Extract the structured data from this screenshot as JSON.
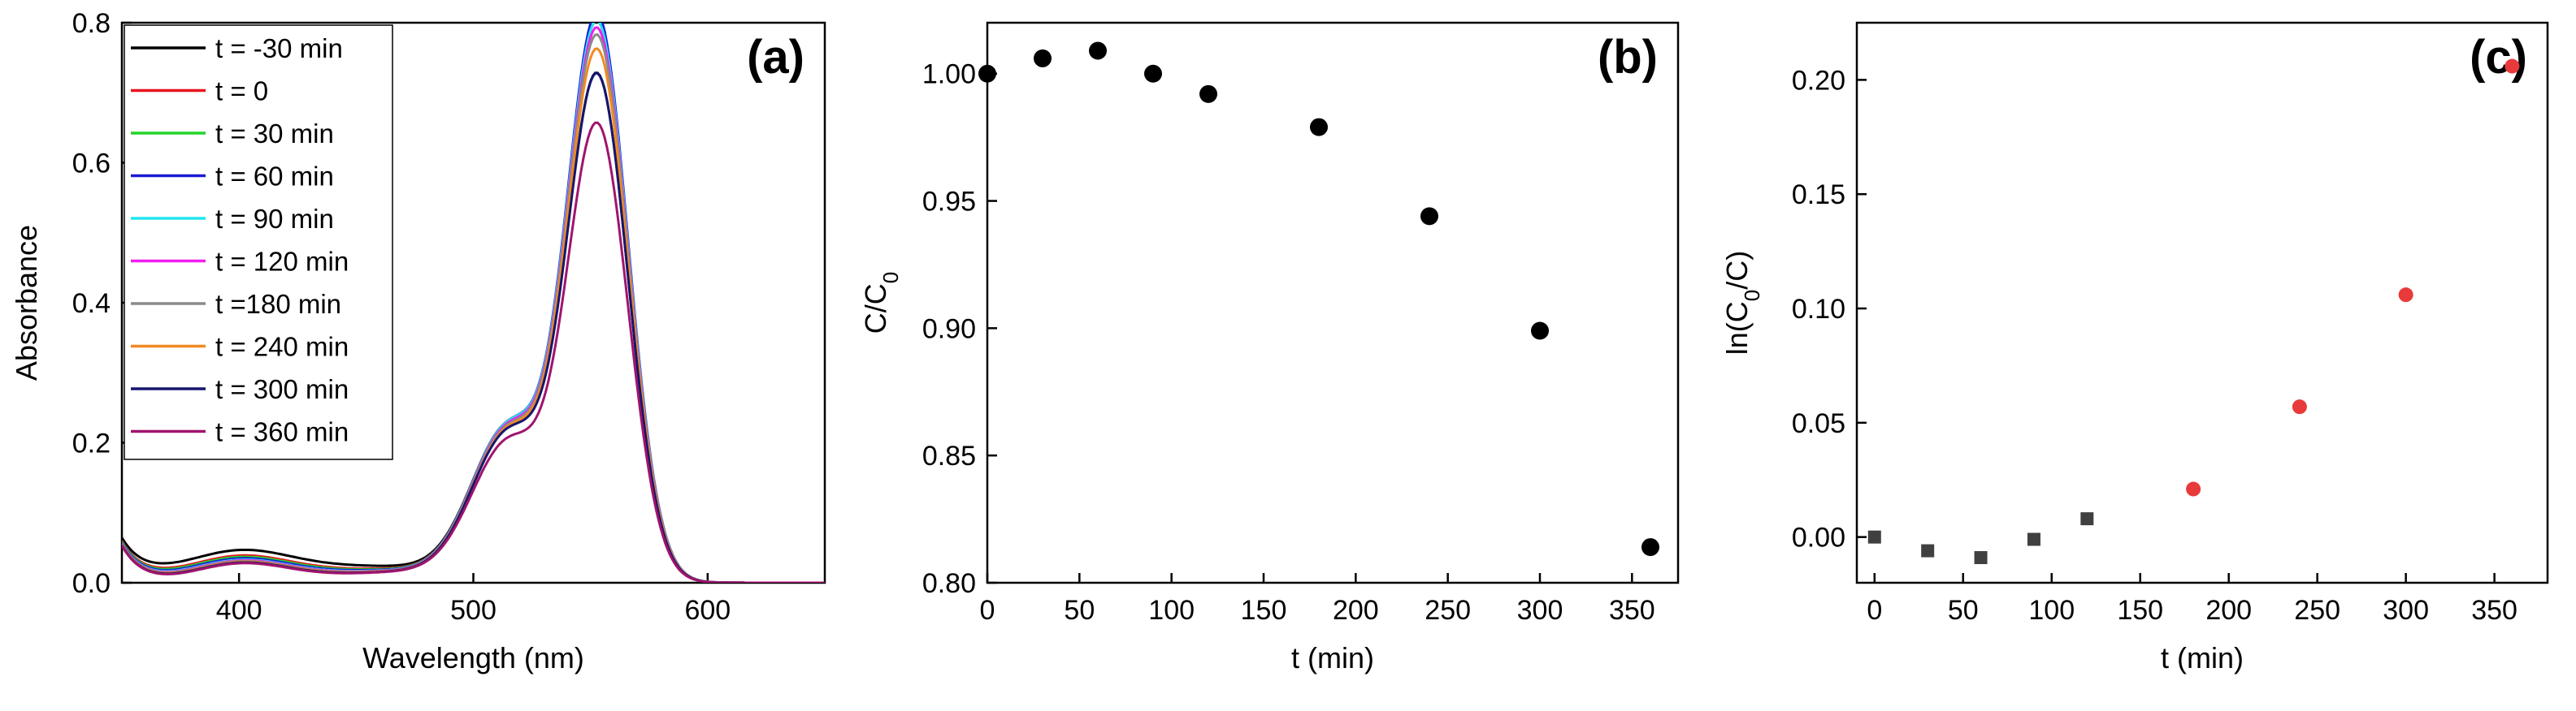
{
  "chart_data": [
    {
      "type": "line",
      "panel_label": "(a)",
      "xlabel": "Wavelength (nm)",
      "ylabel": "Absorbance",
      "xlim": [
        350,
        650
      ],
      "ylim": [
        0,
        0.8
      ],
      "xticks": [
        "400",
        "500",
        "600"
      ],
      "xtick_values": [
        400,
        500,
        600
      ],
      "yticks": [
        "0.0",
        "0.2",
        "0.4",
        "0.6",
        "0.8"
      ],
      "ytick_values": [
        0,
        0.2,
        0.4,
        0.6,
        0.8
      ],
      "legend_position": "top-left",
      "x": [
        350,
        355,
        360,
        370,
        380,
        390,
        400,
        410,
        420,
        430,
        440,
        450,
        460,
        470,
        480,
        490,
        500,
        505,
        510,
        515,
        520,
        525,
        530,
        535,
        540,
        545,
        550,
        553,
        556,
        560,
        565,
        570,
        575,
        580,
        585,
        590,
        600,
        610,
        620,
        630,
        650
      ],
      "series": [
        {
          "name": "t = -30 min",
          "color": "#000000",
          "peak": 0.715,
          "base_shift": 0.012,
          "shoulder": 1.0
        },
        {
          "name": "t = 0",
          "color": "#e8141c",
          "peak": 0.79,
          "base_shift": 0.004,
          "shoulder": 1.0
        },
        {
          "name": "t = 30 min",
          "color": "#22d42a",
          "peak": 0.795,
          "base_shift": 0.002,
          "shoulder": 1.0
        },
        {
          "name": "t = 60 min",
          "color": "#1a1ad4",
          "peak": 0.8,
          "base_shift": 0.0,
          "shoulder": 1.0
        },
        {
          "name": "t = 90 min",
          "color": "#22e6ee",
          "peak": 0.79,
          "base_shift": -0.002,
          "shoulder": 1.0
        },
        {
          "name": "t = 120 min",
          "color": "#f01ef0",
          "peak": 0.78,
          "base_shift": -0.003,
          "shoulder": 0.99
        },
        {
          "name": "t =180 min",
          "color": "#8a8a8a",
          "peak": 0.77,
          "base_shift": -0.004,
          "shoulder": 0.98
        },
        {
          "name": "t = 240 min",
          "color": "#f28a22",
          "peak": 0.75,
          "base_shift": -0.005,
          "shoulder": 0.97
        },
        {
          "name": "t = 300 min",
          "color": "#16166e",
          "peak": 0.715,
          "base_shift": -0.006,
          "shoulder": 0.96
        },
        {
          "name": "t = 360 min",
          "color": "#a0146e",
          "peak": 0.645,
          "base_shift": -0.007,
          "shoulder": 0.9
        }
      ]
    },
    {
      "type": "scatter",
      "panel_label": "(b)",
      "xlabel": "t (min)",
      "ylabel": "C/C",
      "ylabel_sub": "0",
      "xlim": [
        0,
        375
      ],
      "ylim": [
        0.8,
        1.02
      ],
      "xticks": [
        "0",
        "50",
        "100",
        "150",
        "200",
        "250",
        "300",
        "350"
      ],
      "xtick_values": [
        0,
        50,
        100,
        150,
        200,
        250,
        300,
        350
      ],
      "yticks": [
        "0.80",
        "0.85",
        "0.90",
        "0.95",
        "1.00"
      ],
      "ytick_values": [
        0.8,
        0.85,
        0.9,
        0.95,
        1.0
      ],
      "series": [
        {
          "x": [
            0,
            30,
            60,
            90,
            120,
            180,
            240,
            300,
            360
          ],
          "y": [
            1.0,
            1.006,
            1.009,
            1.0,
            0.992,
            0.979,
            0.944,
            0.899,
            0.814
          ],
          "color": "#000000",
          "marker": "circle"
        }
      ]
    },
    {
      "type": "scatter",
      "panel_label": "(c)",
      "xlabel": "t (min)",
      "ylabel": "ln(C",
      "ylabel_sub": "0",
      "ylabel_end": "/C)",
      "xlim": [
        -10,
        380
      ],
      "ylim": [
        -0.02,
        0.225
      ],
      "xticks": [
        "0",
        "50",
        "100",
        "150",
        "200",
        "250",
        "300",
        "350"
      ],
      "xtick_values": [
        0,
        50,
        100,
        150,
        200,
        250,
        300,
        350
      ],
      "yticks": [
        "0.00",
        "0.05",
        "0.10",
        "0.15",
        "0.20"
      ],
      "ytick_values": [
        0,
        0.05,
        0.1,
        0.15,
        0.2
      ],
      "series": [
        {
          "x": [
            0,
            30,
            60,
            90,
            120
          ],
          "y": [
            0.0,
            -0.006,
            -0.009,
            -0.001,
            0.008
          ],
          "color": "#404040",
          "marker": "square"
        },
        {
          "x": [
            180,
            240,
            300,
            360
          ],
          "y": [
            0.021,
            0.057,
            0.106,
            0.206
          ],
          "color": "#e83a3a",
          "marker": "circle"
        }
      ]
    }
  ]
}
